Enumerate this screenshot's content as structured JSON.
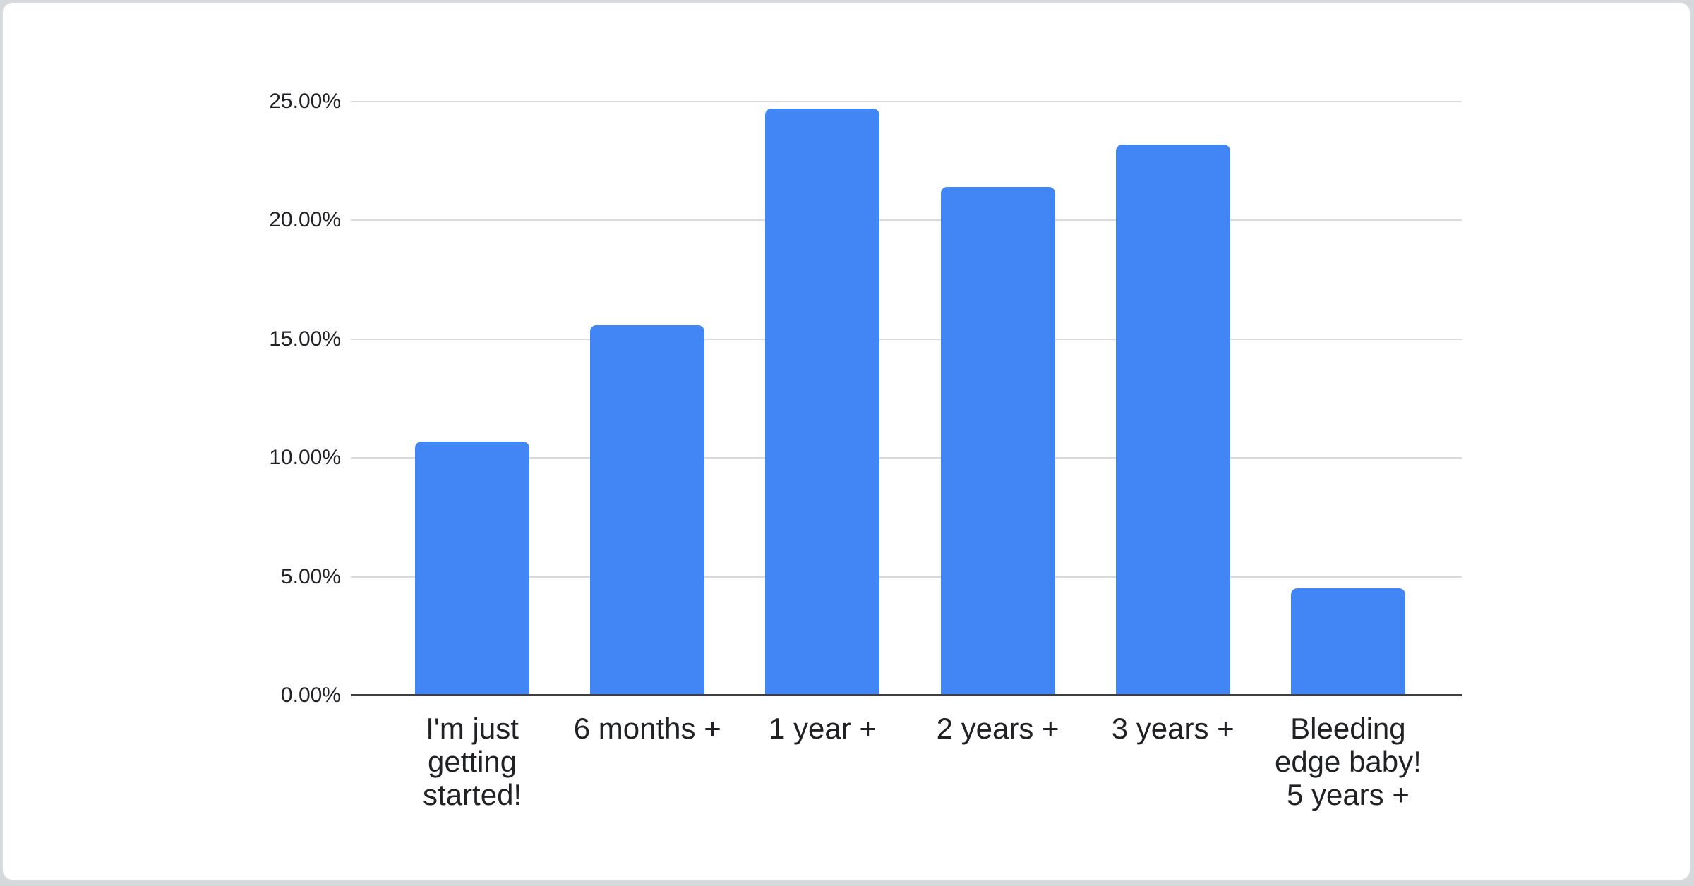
{
  "page": {
    "background_color": "#d6d9dc",
    "card_background": "#ffffff",
    "card_border_color": "#dadce0"
  },
  "chart_data": {
    "type": "bar",
    "title": "",
    "categories": [
      "I'm just getting started!",
      "6 months +",
      "1 year +",
      "2 years +",
      "3 years +",
      "Bleeding edge baby! 5 years +"
    ],
    "values": [
      10.7,
      15.6,
      24.7,
      21.4,
      23.2,
      4.5
    ],
    "value_unit": "%",
    "series_name": "",
    "xlabel": "",
    "ylabel": "",
    "ylim": [
      0,
      25
    ],
    "y_ticks": [
      {
        "label": "0.00%",
        "value": 0
      },
      {
        "label": "5.00%",
        "value": 5
      },
      {
        "label": "10.00%",
        "value": 10
      },
      {
        "label": "15.00%",
        "value": 15
      },
      {
        "label": "20.00%",
        "value": 20
      },
      {
        "label": "25.00%",
        "value": 25
      }
    ],
    "grid": true,
    "legend": "none",
    "bar_color": "#4285f4",
    "gridline_color": "#d9d9d9",
    "axis_line_color": "#3c4043",
    "label_color": "#202124"
  }
}
